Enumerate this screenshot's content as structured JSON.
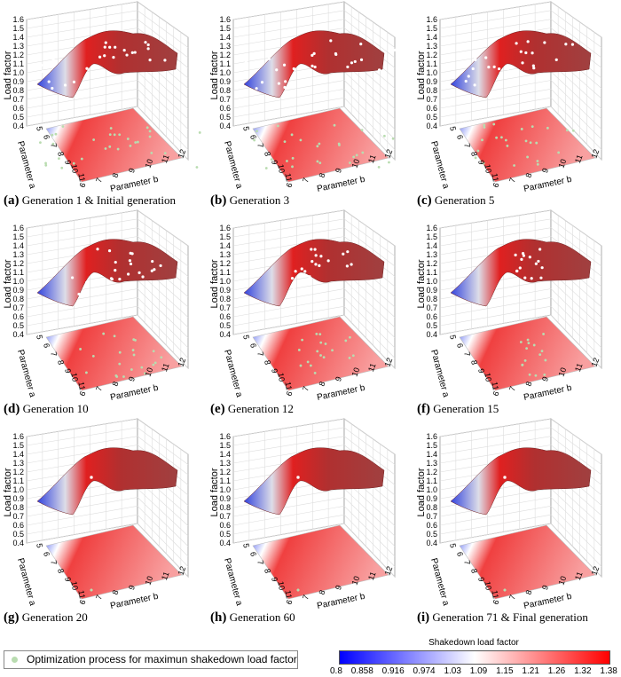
{
  "chart_data": {
    "type": "surface-3d",
    "zlabel": "Load factor",
    "xlabel": "Parameter b",
    "ylabel": "Parameter a",
    "z_ticks": [
      "0.4",
      "0.5",
      "0.6",
      "0.7",
      "0.8",
      "0.9",
      "1.0",
      "1.1",
      "1.2",
      "1.3",
      "1.4",
      "1.5",
      "1.6"
    ],
    "a_ticks": [
      "5",
      "6",
      "7",
      "8",
      "9",
      "10",
      "11"
    ],
    "b_ticks": [
      "6",
      "7",
      "8",
      "9",
      "10",
      "11",
      "12"
    ],
    "zlim": [
      0.4,
      1.6
    ],
    "panels": [
      {
        "letter": "(a)",
        "title": "Generation 1 & Initial generation"
      },
      {
        "letter": "(b)",
        "title": "Generation 3"
      },
      {
        "letter": "(c)",
        "title": "Generation 5"
      },
      {
        "letter": "(d)",
        "title": "Generation 10"
      },
      {
        "letter": "(e)",
        "title": "Generation 12"
      },
      {
        "letter": "(f)",
        "title": "Generation 15"
      },
      {
        "letter": "(g)",
        "title": "Generation 20"
      },
      {
        "letter": "(h)",
        "title": "Generation 60"
      },
      {
        "letter": "(i)",
        "title": "Generation 71 & Final generation"
      }
    ],
    "legend": "Optimization process for maximun shakedown load factor",
    "colorbar": {
      "title": "Shakedown load factor",
      "ticks": [
        "0.8",
        "0.858",
        "0.916",
        "0.974",
        "1.03",
        "1.09",
        "1.15",
        "1.21",
        "1.26",
        "1.32",
        "1.38"
      ],
      "colors": [
        "#0000ff",
        "#ffffff",
        "#ff0000"
      ]
    },
    "point_color": "#b9dcb0"
  }
}
